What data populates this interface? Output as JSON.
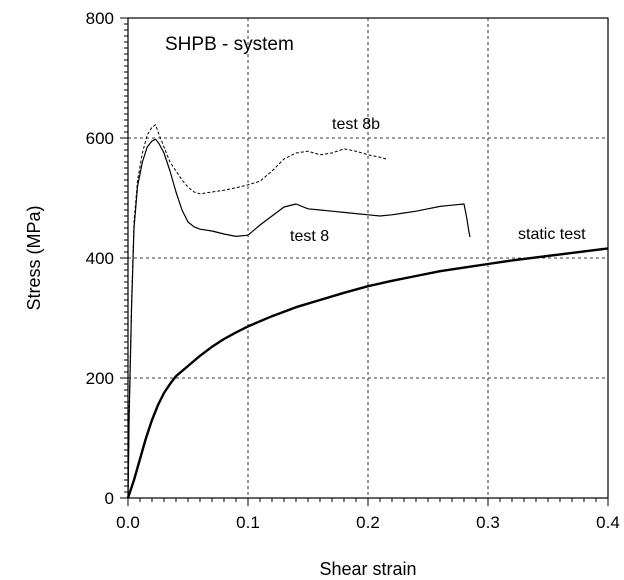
{
  "chart_data": {
    "type": "line",
    "title": "SHPB - system",
    "xlabel": "Shear strain",
    "ylabel": "Stress (MPa)",
    "xlim": [
      0.0,
      0.4
    ],
    "ylim": [
      0,
      800
    ],
    "x_ticks": [
      "0.0",
      "0.1",
      "0.2",
      "0.3",
      "0.4"
    ],
    "y_ticks": [
      "0",
      "200",
      "400",
      "600",
      "800"
    ],
    "grid": true,
    "series": [
      {
        "name": "test 8b",
        "style": "dashed",
        "points": [
          [
            0.0,
            0
          ],
          [
            0.001,
            150
          ],
          [
            0.003,
            330
          ],
          [
            0.005,
            460
          ],
          [
            0.008,
            530
          ],
          [
            0.012,
            575
          ],
          [
            0.016,
            605
          ],
          [
            0.02,
            618
          ],
          [
            0.023,
            622
          ],
          [
            0.026,
            605
          ],
          [
            0.03,
            585
          ],
          [
            0.035,
            560
          ],
          [
            0.04,
            545
          ],
          [
            0.045,
            530
          ],
          [
            0.05,
            518
          ],
          [
            0.055,
            510
          ],
          [
            0.06,
            507
          ],
          [
            0.07,
            510
          ],
          [
            0.08,
            513
          ],
          [
            0.09,
            517
          ],
          [
            0.1,
            522
          ],
          [
            0.11,
            528
          ],
          [
            0.12,
            545
          ],
          [
            0.13,
            565
          ],
          [
            0.14,
            575
          ],
          [
            0.15,
            578
          ],
          [
            0.16,
            572
          ],
          [
            0.17,
            575
          ],
          [
            0.18,
            582
          ],
          [
            0.19,
            578
          ],
          [
            0.2,
            572
          ],
          [
            0.21,
            568
          ],
          [
            0.215,
            565
          ]
        ]
      },
      {
        "name": "test 8",
        "style": "solid",
        "points": [
          [
            0.0,
            0
          ],
          [
            0.001,
            140
          ],
          [
            0.003,
            320
          ],
          [
            0.005,
            450
          ],
          [
            0.008,
            520
          ],
          [
            0.012,
            560
          ],
          [
            0.016,
            585
          ],
          [
            0.02,
            595
          ],
          [
            0.023,
            598
          ],
          [
            0.026,
            590
          ],
          [
            0.03,
            575
          ],
          [
            0.035,
            545
          ],
          [
            0.04,
            510
          ],
          [
            0.045,
            480
          ],
          [
            0.05,
            460
          ],
          [
            0.055,
            452
          ],
          [
            0.06,
            448
          ],
          [
            0.07,
            445
          ],
          [
            0.08,
            440
          ],
          [
            0.09,
            436
          ],
          [
            0.1,
            438
          ],
          [
            0.11,
            455
          ],
          [
            0.12,
            470
          ],
          [
            0.13,
            485
          ],
          [
            0.14,
            490
          ],
          [
            0.15,
            482
          ],
          [
            0.16,
            480
          ],
          [
            0.17,
            478
          ],
          [
            0.18,
            476
          ],
          [
            0.19,
            474
          ],
          [
            0.2,
            472
          ],
          [
            0.21,
            470
          ],
          [
            0.22,
            472
          ],
          [
            0.23,
            475
          ],
          [
            0.24,
            478
          ],
          [
            0.25,
            482
          ],
          [
            0.26,
            486
          ],
          [
            0.27,
            488
          ],
          [
            0.28,
            490
          ],
          [
            0.282,
            470
          ],
          [
            0.284,
            445
          ],
          [
            0.285,
            435
          ]
        ]
      },
      {
        "name": "static test",
        "style": "bold",
        "points": [
          [
            0.0,
            0
          ],
          [
            0.005,
            30
          ],
          [
            0.01,
            65
          ],
          [
            0.015,
            100
          ],
          [
            0.02,
            130
          ],
          [
            0.025,
            155
          ],
          [
            0.03,
            175
          ],
          [
            0.035,
            190
          ],
          [
            0.04,
            203
          ],
          [
            0.05,
            220
          ],
          [
            0.06,
            237
          ],
          [
            0.07,
            252
          ],
          [
            0.08,
            265
          ],
          [
            0.09,
            276
          ],
          [
            0.1,
            286
          ],
          [
            0.12,
            303
          ],
          [
            0.14,
            318
          ],
          [
            0.16,
            330
          ],
          [
            0.18,
            342
          ],
          [
            0.2,
            353
          ],
          [
            0.22,
            362
          ],
          [
            0.24,
            370
          ],
          [
            0.26,
            378
          ],
          [
            0.28,
            384
          ],
          [
            0.3,
            390
          ],
          [
            0.32,
            396
          ],
          [
            0.34,
            401
          ],
          [
            0.36,
            406
          ],
          [
            0.38,
            411
          ],
          [
            0.4,
            416
          ]
        ]
      }
    ],
    "annotations": [
      {
        "text": "test 8b",
        "x": 0.17,
        "y": 615
      },
      {
        "text": "test 8",
        "x": 0.135,
        "y": 428
      },
      {
        "text": "static test",
        "x": 0.325,
        "y": 432
      }
    ]
  }
}
